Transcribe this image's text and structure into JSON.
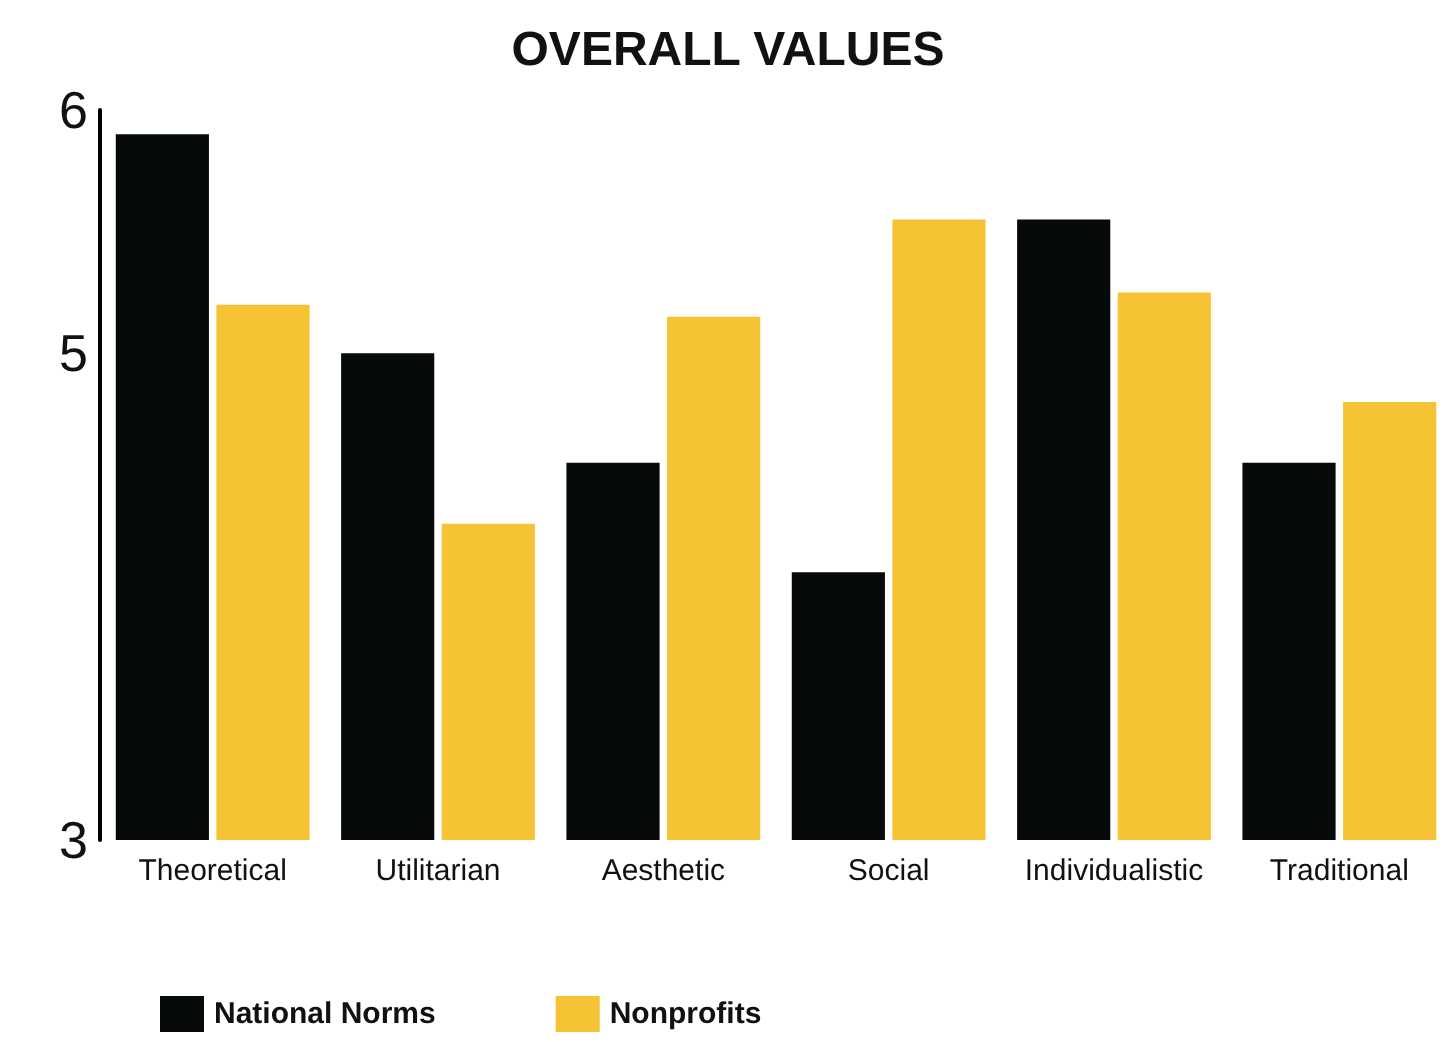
{
  "chart_data": {
    "type": "bar",
    "title": "OVERALL VALUES",
    "categories": [
      "Theoretical",
      "Utilitarian",
      "Aesthetic",
      "Social",
      "Individualistic",
      "Traditional"
    ],
    "series": [
      {
        "name": "National Norms",
        "color": "#060a0a",
        "values": [
          5.9,
          5.0,
          4.55,
          4.1,
          5.55,
          4.55
        ]
      },
      {
        "name": "Nonprofits",
        "color": "#f5c333",
        "values": [
          5.2,
          4.3,
          5.15,
          5.55,
          5.25,
          4.8
        ]
      }
    ],
    "ylim": [
      3,
      6
    ],
    "yticks": [
      3,
      5,
      6
    ],
    "grid": false,
    "legend": "bottom left"
  }
}
